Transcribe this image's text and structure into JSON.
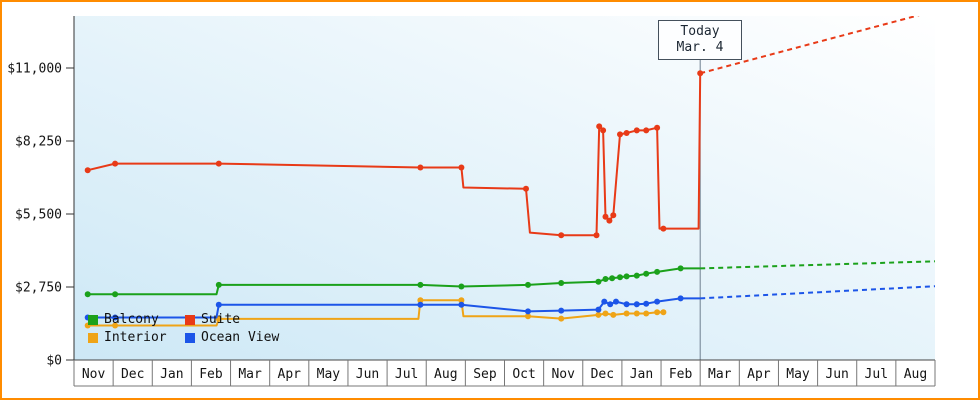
{
  "frame": {
    "border_color": "#ff8c00",
    "background": "#ffffff"
  },
  "plot": {
    "gradient_from": "#cde8f6",
    "gradient_to": "#ffffff"
  },
  "chart_data": {
    "type": "line",
    "x_axis": {
      "months": [
        "Nov",
        "Dec",
        "Jan",
        "Feb",
        "Mar",
        "Apr",
        "May",
        "Jun",
        "Jul",
        "Aug",
        "Sep",
        "Oct",
        "Nov",
        "Dec",
        "Jan",
        "Feb",
        "Mar",
        "Apr",
        "May",
        "Jun",
        "Jul",
        "Aug"
      ]
    },
    "y_axis": {
      "ticks": [
        {
          "label": "$0",
          "value": 0
        },
        {
          "label": "$2,750",
          "value": 2750
        },
        {
          "label": "$5,500",
          "value": 5500
        },
        {
          "label": "$8,250",
          "value": 8250
        },
        {
          "label": "$11,000",
          "value": 11000
        }
      ]
    },
    "xlim": [
      0,
      22
    ],
    "ylim": [
      0,
      12900
    ],
    "grid": false,
    "legend": {
      "position": "bottom-left-inside",
      "rows": [
        [
          "Balcony",
          "Suite"
        ],
        [
          "Interior",
          "Ocean View"
        ]
      ]
    },
    "today": {
      "line1": "Today",
      "line2": "Mar. 4",
      "x": 16.0
    },
    "series": [
      {
        "name": "Balcony",
        "color": "#1ba11b",
        "points": [
          [
            0.35,
            2480,
            1
          ],
          [
            1.05,
            2480,
            1
          ],
          [
            3.64,
            2480,
            0
          ],
          [
            3.7,
            2830,
            1
          ],
          [
            8.85,
            2830,
            1
          ],
          [
            9.9,
            2770,
            1
          ],
          [
            11.6,
            2830,
            1
          ],
          [
            12.45,
            2900,
            1
          ],
          [
            13.4,
            2950,
            1
          ],
          [
            13.58,
            3050,
            1
          ],
          [
            13.75,
            3080,
            1
          ],
          [
            13.95,
            3120,
            1
          ],
          [
            14.12,
            3150,
            1
          ],
          [
            14.38,
            3180,
            1
          ],
          [
            14.62,
            3250,
            1
          ],
          [
            14.9,
            3320,
            1
          ],
          [
            15.5,
            3450,
            1
          ],
          [
            16,
            3450,
            0
          ]
        ],
        "projection": [
          [
            16,
            3450
          ],
          [
            22,
            3720
          ]
        ]
      },
      {
        "name": "Suite",
        "color": "#e83a17",
        "points": [
          [
            0.35,
            7150,
            1
          ],
          [
            1.05,
            7400,
            1
          ],
          [
            3.7,
            7400,
            1
          ],
          [
            8.85,
            7250,
            1
          ],
          [
            9.9,
            7250,
            1
          ],
          [
            9.95,
            6500,
            0
          ],
          [
            11.55,
            6450,
            1
          ],
          [
            11.65,
            4800,
            0
          ],
          [
            12.45,
            4700,
            1
          ],
          [
            13.35,
            4700,
            1
          ],
          [
            13.42,
            8800,
            1
          ],
          [
            13.52,
            8650,
            1
          ],
          [
            13.58,
            5400,
            1
          ],
          [
            13.68,
            5250,
            1
          ],
          [
            13.78,
            5450,
            1
          ],
          [
            13.95,
            8500,
            1
          ],
          [
            14.12,
            8550,
            1
          ],
          [
            14.38,
            8650,
            1
          ],
          [
            14.62,
            8650,
            1
          ],
          [
            14.9,
            8750,
            1
          ],
          [
            14.96,
            4950,
            0
          ],
          [
            15.06,
            4950,
            1
          ],
          [
            15.96,
            4950,
            0
          ],
          [
            16,
            10800,
            1
          ]
        ],
        "projection": [
          [
            16,
            10800
          ],
          [
            22,
            13150
          ]
        ]
      },
      {
        "name": "Interior",
        "color": "#efa417",
        "points": [
          [
            0.35,
            1300,
            1
          ],
          [
            1.05,
            1300,
            1
          ],
          [
            3.64,
            1300,
            0
          ],
          [
            3.7,
            1550,
            1
          ],
          [
            8.8,
            1550,
            0
          ],
          [
            8.85,
            2250,
            1
          ],
          [
            9.9,
            2250,
            1
          ],
          [
            9.95,
            1650,
            0
          ],
          [
            11.6,
            1650,
            1
          ],
          [
            12.45,
            1560,
            1
          ],
          [
            13.4,
            1700,
            1
          ],
          [
            13.58,
            1750,
            1
          ],
          [
            13.78,
            1700,
            1
          ],
          [
            14.12,
            1750,
            1
          ],
          [
            14.38,
            1750,
            1
          ],
          [
            14.62,
            1750,
            1
          ],
          [
            14.9,
            1800,
            1
          ],
          [
            15.06,
            1800,
            1
          ]
        ],
        "projection": null
      },
      {
        "name": "Ocean View",
        "color": "#1c55e8",
        "points": [
          [
            0.35,
            1600,
            1
          ],
          [
            1.05,
            1600,
            1
          ],
          [
            3.64,
            1600,
            0
          ],
          [
            3.7,
            2080,
            1
          ],
          [
            8.85,
            2080,
            1
          ],
          [
            9.9,
            2080,
            1
          ],
          [
            11.6,
            1830,
            1
          ],
          [
            12.45,
            1860,
            1
          ],
          [
            13.4,
            1900,
            1
          ],
          [
            13.55,
            2200,
            1
          ],
          [
            13.7,
            2100,
            1
          ],
          [
            13.85,
            2200,
            1
          ],
          [
            14.12,
            2100,
            1
          ],
          [
            14.38,
            2100,
            1
          ],
          [
            14.62,
            2120,
            1
          ],
          [
            14.9,
            2200,
            1
          ],
          [
            15.5,
            2320,
            1
          ],
          [
            16,
            2320,
            0
          ]
        ],
        "projection": [
          [
            16,
            2320
          ],
          [
            22,
            2780
          ]
        ]
      }
    ]
  }
}
